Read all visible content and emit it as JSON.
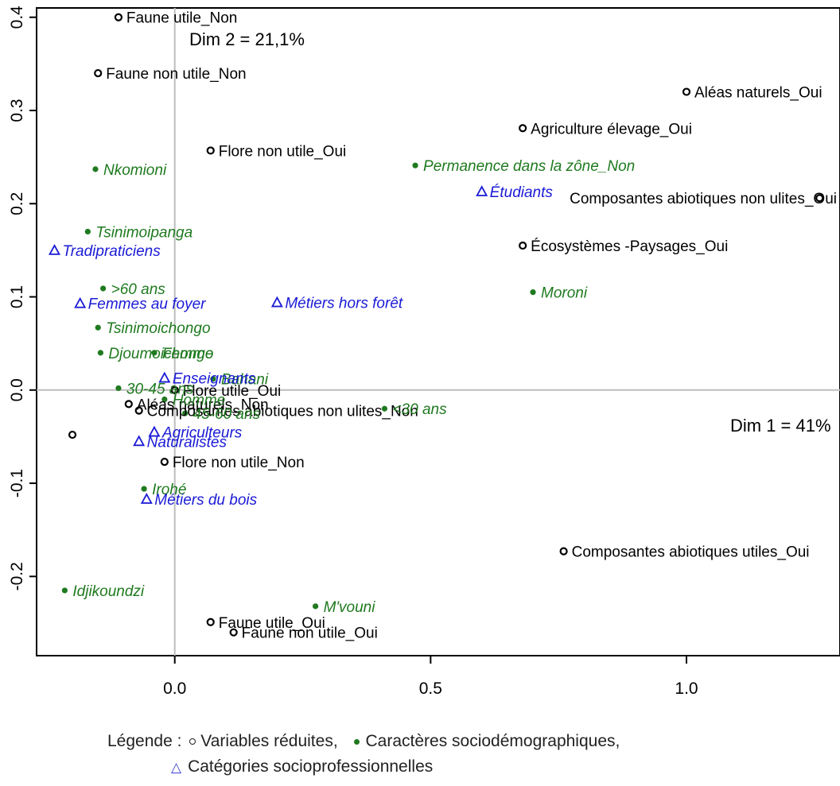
{
  "chart_data": {
    "type": "scatter",
    "xlim": [
      -0.27,
      1.3
    ],
    "ylim": [
      -0.285,
      0.41
    ],
    "xticks": [
      0.0,
      0.5,
      1.0
    ],
    "xtick_labels": [
      "0.0",
      "0.5",
      "1.0"
    ],
    "yticks": [
      -0.2,
      -0.1,
      0.0,
      0.1,
      0.2,
      0.3,
      0.4
    ],
    "ytick_labels": [
      "-0.2",
      "-0.1",
      "0.0",
      "0.1",
      "0.2",
      "0.3",
      "0.4"
    ],
    "dim1_label": "Dim 1 = 41%",
    "dim2_label": "Dim 2  = 21,1%",
    "reference_lines": "x=0 and y=0, gray",
    "series": [
      {
        "name": "Variables réduites",
        "marker": "open-circle",
        "color": "#000000",
        "points": [
          {
            "label": "Faune utile_Non",
            "x": -0.11,
            "y": 0.4
          },
          {
            "label": "Faune non utile_Non",
            "x": -0.15,
            "y": 0.34
          },
          {
            "label": "Flore non utile_Oui",
            "x": 0.07,
            "y": 0.257
          },
          {
            "label": "Aléas naturels_Oui",
            "x": 1.0,
            "y": 0.32
          },
          {
            "label": "Agriculture élevage_Oui",
            "x": 0.68,
            "y": 0.281
          },
          {
            "label": "Composantes abiotiques non ulites_Oui",
            "x": 1.26,
            "y": 0.206
          },
          {
            "label": "Écosystèmes -Paysages_Oui",
            "x": 0.68,
            "y": 0.155
          },
          {
            "label": "Flore utile_Oui",
            "x": 0.0,
            "y": 0.0
          },
          {
            "label": "Composantes abiotiques non ulites_Non",
            "x": -0.07,
            "y": -0.022
          },
          {
            "label": "Aléas naturels_Non",
            "x": -0.09,
            "y": -0.015
          },
          {
            "label": "",
            "x": -0.2,
            "y": -0.048
          },
          {
            "label": "Flore non utile_Non",
            "x": -0.02,
            "y": -0.077
          },
          {
            "label": "Composantes abiotiques utiles_Oui",
            "x": 0.76,
            "y": -0.173
          },
          {
            "label": "Faune utile_Oui",
            "x": 0.07,
            "y": -0.249
          },
          {
            "label": "Faune non utile_Oui",
            "x": 0.115,
            "y": -0.26
          }
        ]
      },
      {
        "name": "Caractères sociodémographiques",
        "marker": "filled-dot",
        "color": "#1f7a1f",
        "points": [
          {
            "label": "Nkomioni",
            "x": -0.155,
            "y": 0.237
          },
          {
            "label": "Permanence dans la zône_Non",
            "x": 0.47,
            "y": 0.241
          },
          {
            "label": "Tsinimoipanga",
            "x": -0.17,
            "y": 0.17
          },
          {
            "label": ">60 ans",
            "x": -0.14,
            "y": 0.109
          },
          {
            "label": "Moroni",
            "x": 0.7,
            "y": 0.105
          },
          {
            "label": "Tsinimoichongo",
            "x": -0.15,
            "y": 0.067
          },
          {
            "label": "Djoumoichongo",
            "x": -0.145,
            "y": 0.04
          },
          {
            "label": "Femme",
            "x": -0.04,
            "y": 0.04
          },
          {
            "label": "Bahani",
            "x": 0.075,
            "y": 0.012
          },
          {
            "label": "30-45 ans",
            "x": -0.11,
            "y": 0.002
          },
          {
            "label": "<30 ans",
            "x": 0.41,
            "y": -0.02
          },
          {
            "label": "Homme",
            "x": -0.02,
            "y": -0.01
          },
          {
            "label": "45-60 ans",
            "x": 0.02,
            "y": -0.025
          },
          {
            "label": "Irohé",
            "x": -0.06,
            "y": -0.106
          },
          {
            "label": "Idjikoundzi",
            "x": -0.215,
            "y": -0.215
          },
          {
            "label": "M'vouni",
            "x": 0.275,
            "y": -0.232
          }
        ]
      },
      {
        "name": "Catégories socioprofessionnelles",
        "marker": "open-triangle",
        "color": "#1a1ad6",
        "points": [
          {
            "label": "Étudiants",
            "x": 0.6,
            "y": 0.213
          },
          {
            "label": "Tradipraticiens",
            "x": -0.235,
            "y": 0.15
          },
          {
            "label": "Métiers hors forêt",
            "x": 0.2,
            "y": 0.094
          },
          {
            "label": "Femmes au foyer",
            "x": -0.185,
            "y": 0.093
          },
          {
            "label": "Enseignants",
            "x": -0.02,
            "y": 0.013
          },
          {
            "label": "Naturalistes",
            "x": -0.07,
            "y": -0.055
          },
          {
            "label": "Agriculteurs",
            "x": -0.04,
            "y": -0.045
          },
          {
            "label": "Métiers du bois",
            "x": -0.055,
            "y": -0.117
          }
        ]
      }
    ]
  },
  "legend": {
    "prefix": "Légende :",
    "item1": "Variables réduites,",
    "item2": "Caractères sociodémographiques,",
    "item3": "Catégories socioprofessionnelles",
    "triangle_glyph": "△"
  }
}
